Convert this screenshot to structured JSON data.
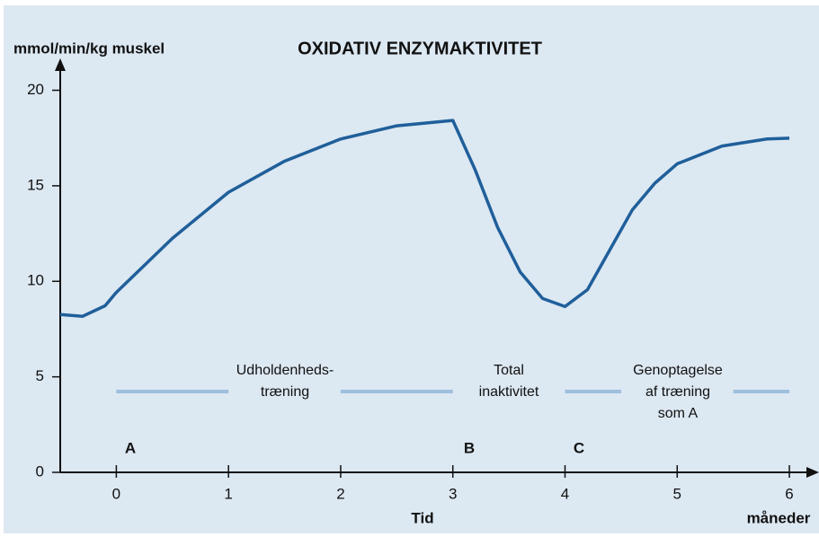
{
  "chart_data": {
    "type": "line",
    "title": "OXIDATIV ENZYMAKTIVITET",
    "y_label": "mmol/min/kg muskel",
    "x_label": "Tid",
    "x_unit": "måneder",
    "x": [
      -0.5,
      -0.3,
      -0.1,
      0,
      0.5,
      1,
      1.5,
      2,
      2.5,
      3,
      3.2,
      3.4,
      3.6,
      3.8,
      4,
      4.2,
      4.4,
      4.6,
      4.8,
      5,
      5.4,
      5.8,
      6
    ],
    "values": [
      8.26,
      8.17,
      8.72,
      9.42,
      12.25,
      14.66,
      16.29,
      17.45,
      18.14,
      18.42,
      15.82,
      12.81,
      10.49,
      9.1,
      8.68,
      9.56,
      11.65,
      13.74,
      15.13,
      16.15,
      17.08,
      17.45,
      17.49
    ],
    "color": "#1f5f9a",
    "xlim": [
      -0.5,
      6.2
    ],
    "xticks": [
      0,
      1,
      2,
      3,
      4,
      5,
      6
    ],
    "ylim": [
      0,
      21.2
    ],
    "yticks": [
      0,
      5,
      10,
      15,
      20
    ],
    "markers": [
      "A",
      "B",
      "C"
    ],
    "phases": [
      [
        "Udholdenheds-",
        "træning"
      ],
      [
        "Total",
        "inaktivitet"
      ],
      [
        "Genoptagelse",
        "af træning",
        "som A"
      ]
    ]
  }
}
